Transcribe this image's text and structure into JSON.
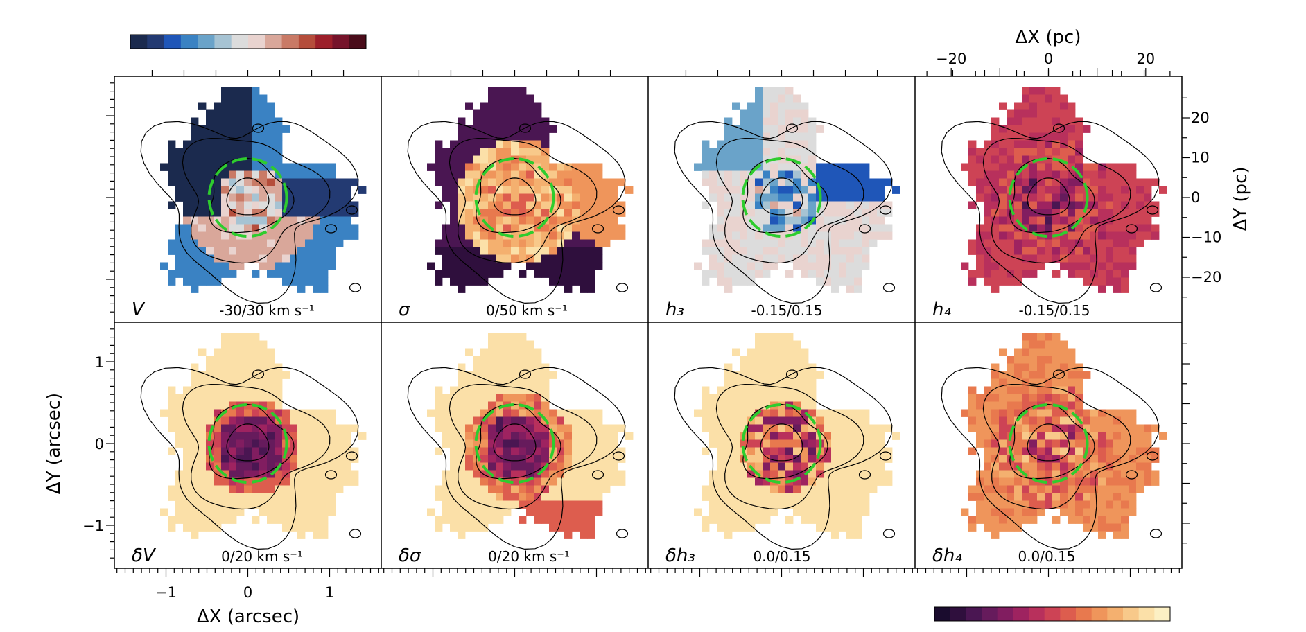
{
  "colors": {
    "diverging_colormap": [
      "#1b2a4e",
      "#233a72",
      "#1f56b8",
      "#3a82c3",
      "#6aa3c9",
      "#a6c3d3",
      "#dcdcdc",
      "#e9d3cf",
      "#d9a79a",
      "#c97a66",
      "#b54d3b",
      "#9c1f2a",
      "#76132a",
      "#4a0c1a"
    ],
    "sequential_colormap": [
      "#1a0c2e",
      "#2f0f3d",
      "#4a1652",
      "#661b5c",
      "#811d60",
      "#9e2360",
      "#b8305c",
      "#cd4355",
      "#dd5d4e",
      "#e8794e",
      "#ef955b",
      "#f4b06f",
      "#f8c98a",
      "#fbe0a8",
      "#fcf0c4"
    ],
    "circle": "#2ecc2e",
    "contour": "#000000"
  },
  "chart_data": [
    {
      "type": "heatmap",
      "panel_label": "V",
      "range_label": "-30/30 km s⁻¹",
      "range": [
        -30,
        30
      ],
      "colormap": "diverging"
    },
    {
      "type": "heatmap",
      "panel_label": "σ",
      "range_label": "0/50 km s⁻¹",
      "range": [
        0,
        50
      ],
      "colormap": "sequential"
    },
    {
      "type": "heatmap",
      "panel_label": "h₃",
      "range_label": "-0.15/0.15",
      "range": [
        -0.15,
        0.15
      ],
      "colormap": "diverging"
    },
    {
      "type": "heatmap",
      "panel_label": "h₄",
      "range_label": "-0.15/0.15",
      "range": [
        -0.15,
        0.15
      ],
      "colormap": "sequential"
    },
    {
      "type": "heatmap",
      "panel_label": "δV",
      "range_label": "0/20 km s⁻¹",
      "range": [
        0,
        20
      ],
      "colormap": "sequential"
    },
    {
      "type": "heatmap",
      "panel_label": "δσ",
      "range_label": "0/20 km s⁻¹",
      "range": [
        0,
        20
      ],
      "colormap": "sequential"
    },
    {
      "type": "heatmap",
      "panel_label": "δh₃",
      "range_label": "0.0/0.15",
      "range": [
        0,
        0.15
      ],
      "colormap": "sequential"
    },
    {
      "type": "heatmap",
      "panel_label": "δh₄",
      "range_label": "0.0/0.15",
      "range": [
        0,
        0.15
      ],
      "colormap": "sequential"
    }
  ],
  "axes": {
    "bottom_label": "ΔX (arcsec)",
    "bottom_ticks": [
      "−1",
      "0",
      "1"
    ],
    "bottom_values": [
      -1,
      0,
      1
    ],
    "left_label": "ΔY (arcsec)",
    "left_ticks": [
      "1",
      "0",
      "−1"
    ],
    "left_values": [
      1,
      0,
      -1
    ],
    "top_label": "ΔX (pc)",
    "top_ticks": [
      "−20",
      "0",
      "20"
    ],
    "top_values": [
      -20,
      0,
      20
    ],
    "right_label": "ΔY (pc)",
    "right_ticks": [
      "20",
      "10",
      "0",
      "−10",
      "−20"
    ],
    "right_values": [
      20,
      10,
      0,
      -10,
      -20
    ],
    "arcsec_range": [
      -1.6,
      1.6
    ],
    "pc_range": [
      -27.5,
      27.5
    ]
  }
}
